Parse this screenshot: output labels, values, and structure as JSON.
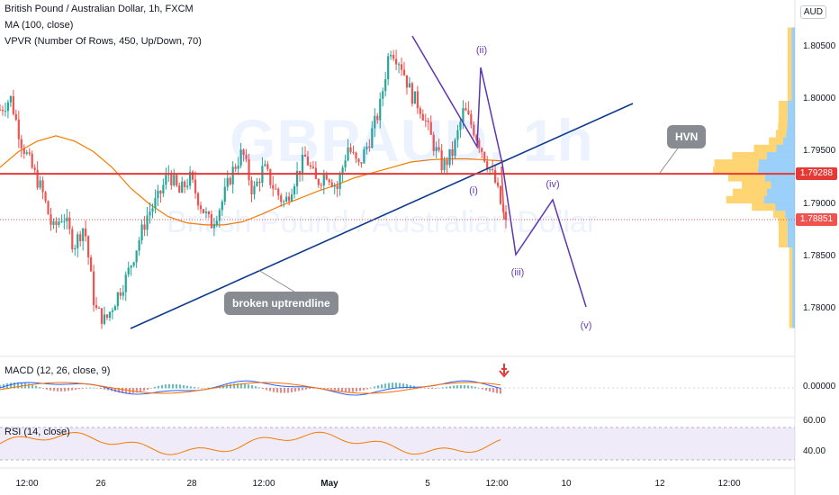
{
  "header": {
    "symbol_line": "British Pound / Australian Dollar, 1h, FXCM",
    "ma_label": "MA (100, close)",
    "vpvr_label": "VPVR (Number Of Rows, 450, Up/Down, 70)",
    "currency": "AUD"
  },
  "watermark": {
    "main": "GBPAUD, 1h",
    "sub": "British Pound / Australian Dollar"
  },
  "annotations": {
    "trendline_label": "broken uptrendline",
    "hvn_label": "HVN",
    "waves": [
      "(i)",
      "(ii)",
      "(iii)",
      "(iv)",
      "(v)"
    ]
  },
  "price_tags": {
    "hline": "1.79288",
    "last": "1.78851"
  },
  "indicators": {
    "macd_label": "MACD (12, 26, close, 9)",
    "macd_tick": "0.00000",
    "rsi_label": "RSI (14, close)",
    "rsi_ticks": [
      "60.00",
      "40.00"
    ]
  },
  "colors": {
    "bull": "#26a69a",
    "bear": "#ef5350",
    "ma": "#f57c00",
    "trend": "#0d3a8c",
    "hline": "#e53935",
    "wave": "#673ab7",
    "vp_up": "#2196f3",
    "vp_down": "#ffb300",
    "rsi": "#f57c00"
  },
  "chart_data": {
    "type": "candlestick",
    "y_ticks": [
      "1.80500",
      "1.80000",
      "1.79500",
      "1.79000",
      "1.78500",
      "1.78000"
    ],
    "ylim": [
      1.7775,
      1.8075
    ],
    "x_ticks": [
      "12:00",
      "26",
      "28",
      "12:00",
      "May",
      "5",
      "12:00",
      "10",
      "12",
      "12:00"
    ],
    "horizontal_line": 1.79288,
    "last_price": 1.78851,
    "trendline": {
      "from": [
        "26",
        1.7782
      ],
      "to": [
        "12",
        1.8012
      ]
    },
    "close_path": [
      1.799,
      1.8001,
      1.796,
      1.7935,
      1.7912,
      1.7875,
      1.789,
      1.786,
      1.788,
      1.78,
      1.7788,
      1.781,
      1.783,
      1.786,
      1.789,
      1.7905,
      1.793,
      1.791,
      1.7925,
      1.79,
      1.788,
      1.79,
      1.793,
      1.795,
      1.791,
      1.7935,
      1.7915,
      1.79,
      1.7925,
      1.7945,
      1.792,
      1.793,
      1.7915,
      1.7955,
      1.7935,
      1.796,
      1.799,
      1.805,
      1.8035,
      1.8005,
      1.799,
      1.796,
      1.7935,
      1.795,
      1.799,
      1.797,
      1.7945,
      1.792,
      1.788
    ],
    "ma_path": [
      1.7935,
      1.795,
      1.796,
      1.7965,
      1.796,
      1.795,
      1.7935,
      1.7915,
      1.79,
      1.7888,
      1.7882,
      1.788,
      1.788,
      1.7883,
      1.789,
      1.7898,
      1.7905,
      1.7912,
      1.7918,
      1.7925,
      1.793,
      1.7935,
      1.794,
      1.7942,
      1.7943,
      1.7943,
      1.7942,
      1.7941
    ],
    "waves": [
      {
        "label": "(i)",
        "price": 1.793
      },
      {
        "label": "(ii)",
        "price": 1.8032
      },
      {
        "label": "(iii)",
        "price": 1.7852
      },
      {
        "label": "(iv)",
        "price": 1.7905
      },
      {
        "label": "(v)",
        "price": 1.78
      }
    ],
    "rsi_levels": [
      60,
      40
    ]
  }
}
